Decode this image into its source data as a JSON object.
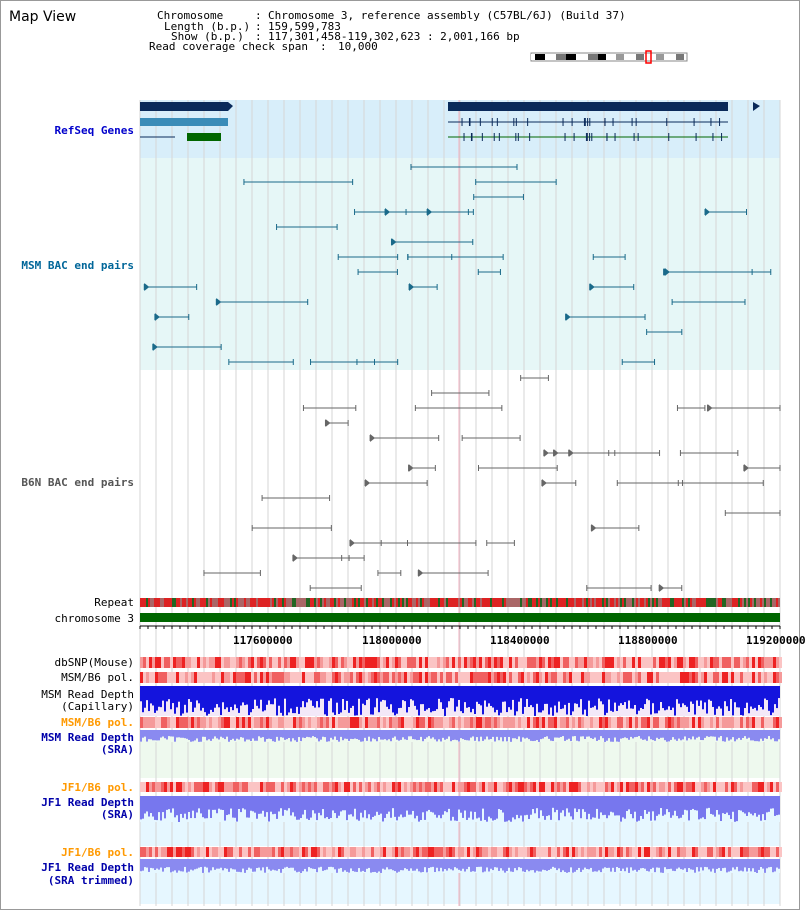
{
  "window": {
    "title": "Map View"
  },
  "info": {
    "chromosome_label": "Chromosome",
    "chromosome_value": "Chromosome 3, reference assembly (C57BL/6J) (Build 37)",
    "length_label": "Length (b.p.)",
    "length_value": "159,599,783",
    "show_label": "Show (b.p.)",
    "show_value": "117,301,458-119,302,623 : 2,001,166 bp",
    "coverage_label": "Read coverage check span",
    "coverage_value": "10,000"
  },
  "tracks": {
    "refseq": "RefSeq Genes",
    "msm_bac": "MSM BAC end pairs",
    "b6n_bac": "B6N BAC end pairs",
    "repeat": "Repeat",
    "chromosome": "chromosome 3",
    "dbsnp": "dbSNP(Mouse)",
    "msm_b6_pol": "MSM/B6 pol.",
    "msm_read_depth_cap_1": "MSM Read Depth",
    "msm_read_depth_cap_2": "(Capillary)",
    "msm_b6_pol_2": "MSM/B6 pol.",
    "msm_read_depth_sra_1": "MSM Read Depth",
    "msm_read_depth_sra_2": "(SRA)",
    "jf1_b6_pol": "JF1/B6 pol.",
    "jf1_read_depth_sra_1": "JF1 Read Depth",
    "jf1_read_depth_sra_2": "(SRA)",
    "jf1_b6_pol_2": "JF1/B6 pol.",
    "jf1_read_depth_trim_1": "JF1 Read Depth",
    "jf1_read_depth_trim_2": "(SRA trimmed)"
  },
  "axis": {
    "ticks": [
      "117600000",
      "118000000",
      "118400000",
      "118800000",
      "119200000"
    ]
  },
  "colors": {
    "refseq_label": "#0000cc",
    "msm_label": "#006699",
    "b6n_label": "#555555",
    "pol_orange": "#ff9900",
    "depth_blue": "#0000aa",
    "refseq_bg": "#d8eefa",
    "msm_bg": "#e6f7f7",
    "chromosome": "#006600"
  }
}
